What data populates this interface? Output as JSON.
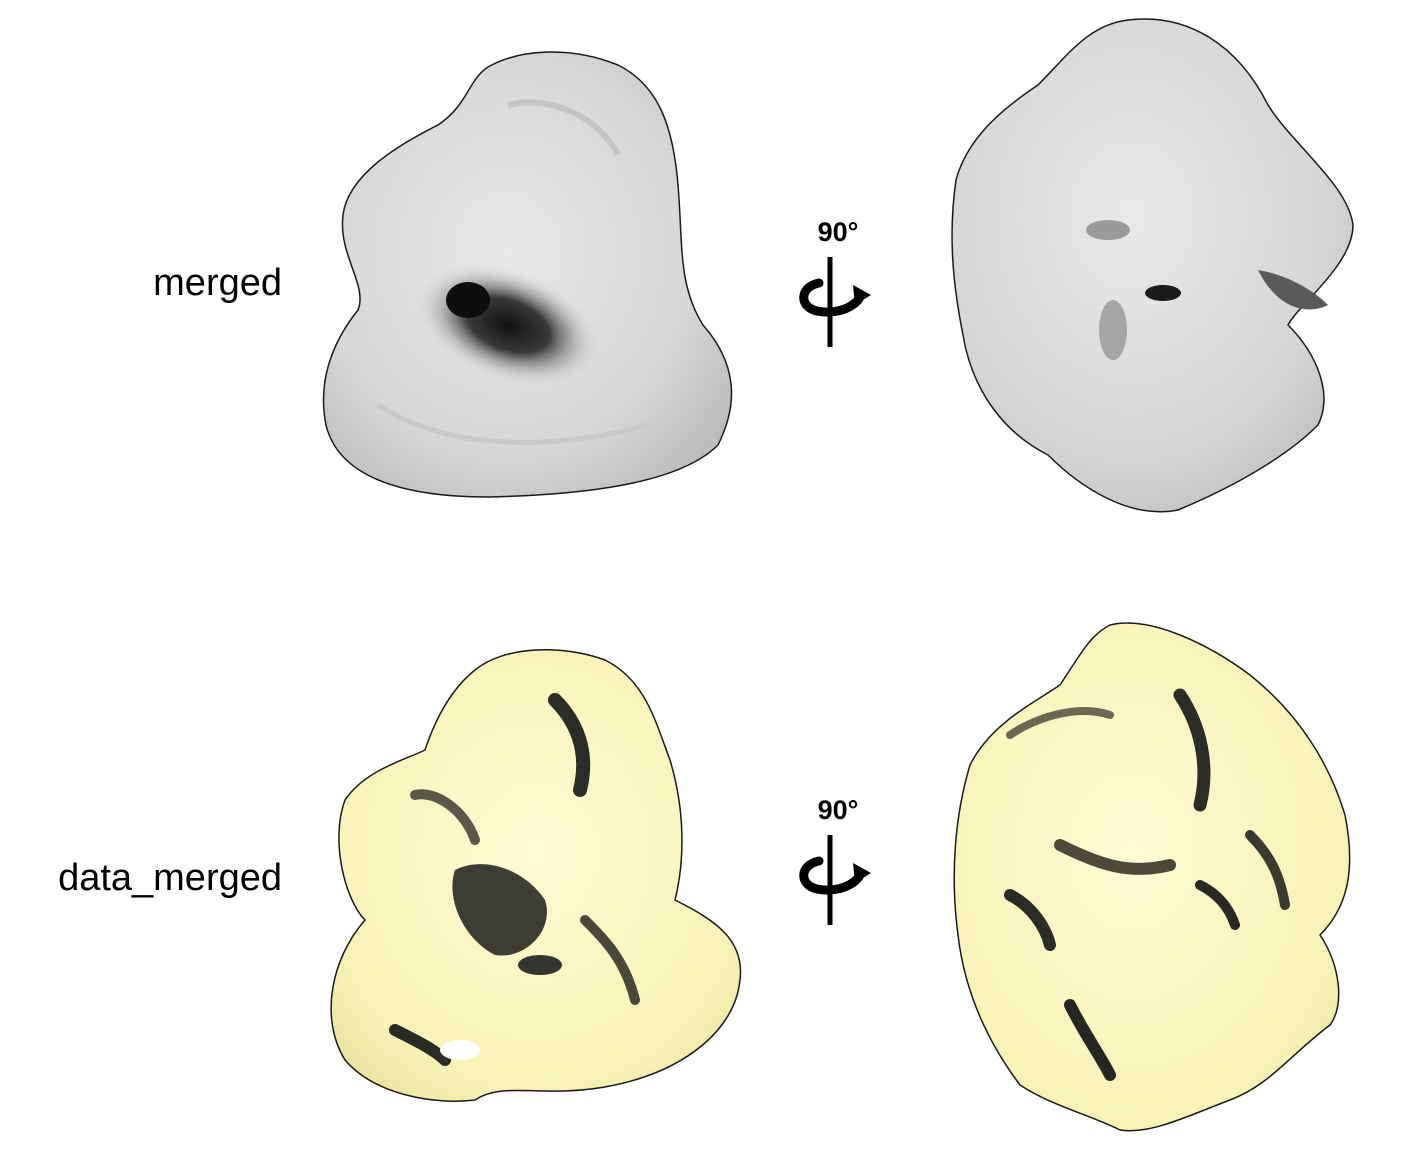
{
  "rows": [
    {
      "label": "merged",
      "rotation_label": "90°"
    },
    {
      "label": "data_merged",
      "rotation_label": "90°"
    }
  ],
  "colors": {
    "merged_surface": "#dcdcdc",
    "data_merged_surface": "#fbf8c4",
    "outline": "#1a1a1a",
    "shadow_dark": "#2a2a2a"
  },
  "icons": [
    "rotation-axis-icon"
  ]
}
